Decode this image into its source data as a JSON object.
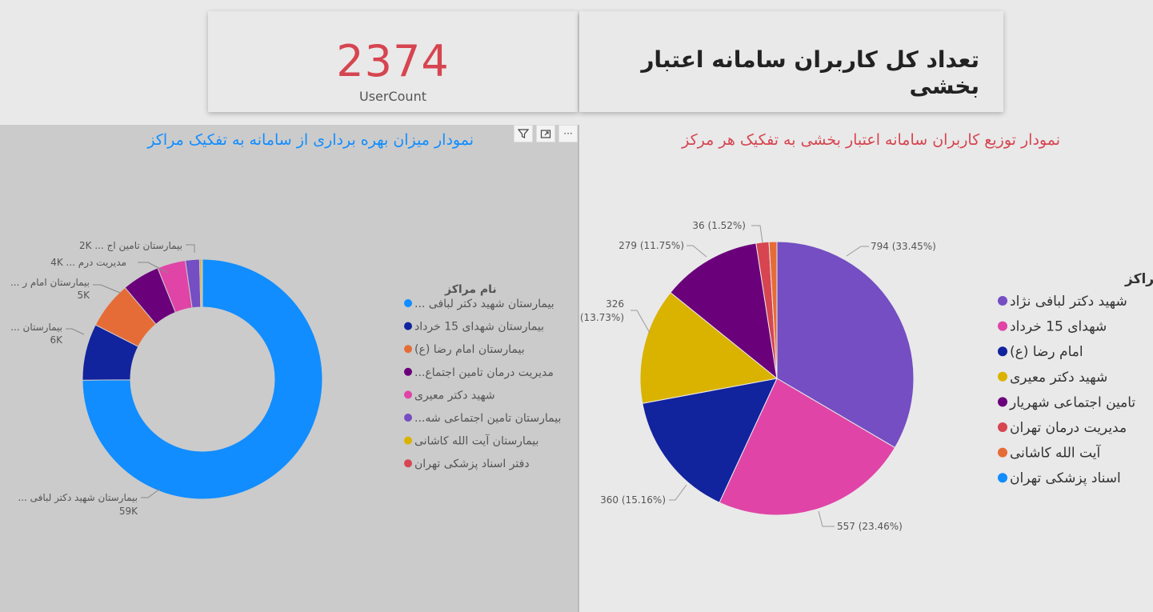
{
  "kpi": {
    "value": "2374",
    "label": "UserCount"
  },
  "header": {
    "title": "تعداد کل کاربران سامانه اعتبار بخشی"
  },
  "left_panel": {
    "title": "نمودار میزان بهره برداری از سامانه به تفکیک مراکز",
    "toolbar": {
      "filter_icon": "filter-icon",
      "focus_icon": "focus-mode-icon",
      "more_icon": "more-options-icon",
      "more_glyph": "···"
    }
  },
  "right_panel": {
    "title": "نمودار توزیع کاربران سامانه اعتبار بخشی به تفکیک هر مرکز"
  },
  "chart_data": [
    {
      "type": "donut",
      "legend_title": "نام مراکز",
      "legend_position": "right",
      "legend": [
        {
          "label": "بیمارستان شهید دکتر لبافی ...",
          "color": "#118dff"
        },
        {
          "label": "بیمارستان شهدای 15 خرداد",
          "color": "#12239e"
        },
        {
          "label": "بیمارستان امام رضا (ع)",
          "color": "#e66c37"
        },
        {
          "label": "مدیریت درمان تامین اجتماع...",
          "color": "#6b007b"
        },
        {
          "label": "شهید دکتر معیری",
          "color": "#e044a7"
        },
        {
          "label": "بیمارستان تامین اجتماعی شه...",
          "color": "#744ec2"
        },
        {
          "label": "بیمارستان آیت الله کاشانی",
          "color": "#d9b300"
        },
        {
          "label": "دفتر اسناد پزشکی تهران",
          "color": "#d64550"
        }
      ],
      "slices": [
        {
          "name": "بیمارستان شهید دکتر لبافی",
          "value": 59000,
          "label": "59K",
          "color": "#118dff"
        },
        {
          "name": "بیمارستان شهدای 15 خرداد",
          "value": 6000,
          "label": "6K",
          "color": "#12239e"
        },
        {
          "name": "بیمارستان امام رضا (ع)",
          "value": 5000,
          "label": "5K",
          "color": "#e66c37"
        },
        {
          "name": "مدیریت درمان تامین اجتماع",
          "value": 4000,
          "label": "4K",
          "color": "#6b007b"
        },
        {
          "name": "شهید دکتر معیری",
          "value": 3000,
          "label": "",
          "color": "#e044a7"
        },
        {
          "name": "بیمارستان تامین اجتماعی شه",
          "value": 1500,
          "label": "2K",
          "color": "#744ec2"
        },
        {
          "name": "بیمارستان آیت الله کاشانی",
          "value": 200,
          "label": "",
          "color": "#d9b300"
        },
        {
          "name": "دفتر اسناد پزشکی تهران",
          "value": 100,
          "label": "",
          "color": "#d64550"
        }
      ],
      "data_labels": [
        {
          "name": "... بیمارستان شهید دکتر لبافی",
          "value": "59K"
        },
        {
          "name": "... بیمارستان",
          "value": "6K"
        },
        {
          "name": "... بیمارستان امام ر",
          "value": "5K"
        },
        {
          "name": "... مدیریت درم",
          "value": "4K"
        },
        {
          "name": "... بیمارستان تامین اج",
          "value": "2K"
        }
      ]
    },
    {
      "type": "pie",
      "legend_title": "توزیع کاربران در مراکز",
      "legend_position": "right",
      "slices": [
        {
          "name": "شهید دکتر لبافی نژاد",
          "value": 794,
          "label": "794 (33.45%)",
          "color": "#744ec2"
        },
        {
          "name": "شهدای 15 خرداد",
          "value": 557,
          "label": "557 (23.46%)",
          "color": "#e044a7"
        },
        {
          "name": "امام رضا (ع)",
          "value": 360,
          "label": "360 (15.16%)",
          "color": "#12239e"
        },
        {
          "name": "شهید دکتر معیری",
          "value": 326,
          "label": "326 (13.73%)",
          "color": "#d9b300"
        },
        {
          "name": "تامین اجتماعی شهریار",
          "value": 279,
          "label": "279 (11.75%)",
          "color": "#6b007b"
        },
        {
          "name": "مدیریت درمان تهران",
          "value": 36,
          "label": "36 (1.52%)",
          "color": "#d64550"
        },
        {
          "name": "آیت الله کاشانی",
          "value": 22,
          "label": "",
          "color": "#e66c37"
        },
        {
          "name": "اسناد پزشکی تهران",
          "value": 0,
          "label": "",
          "color": "#118dff"
        }
      ],
      "label_326": {
        "value": "326",
        "pct": "(13.73%)"
      }
    }
  ]
}
